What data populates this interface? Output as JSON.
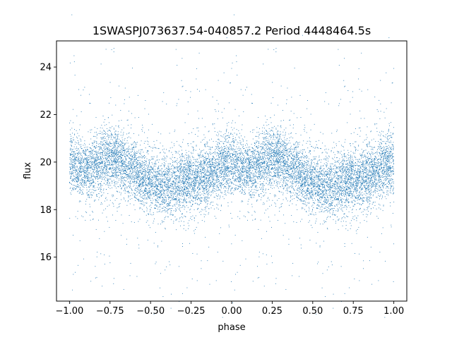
{
  "chart_data": {
    "type": "scatter",
    "title": "1SWASPJ073637.54-040857.2 Period 4448464.5s",
    "xlabel": "phase",
    "ylabel": "flux",
    "xlim": [
      -1.08,
      1.08
    ],
    "ylim": [
      14.15,
      25.1
    ],
    "x_ticks": [
      -1.0,
      -0.75,
      -0.5,
      -0.25,
      0.0,
      0.25,
      0.5,
      0.75,
      1.0
    ],
    "x_tick_labels": [
      "−1.00",
      "−0.75",
      "−0.50",
      "−0.25",
      "0.00",
      "0.25",
      "0.50",
      "0.75",
      "1.00"
    ],
    "y_ticks": [
      16,
      18,
      20,
      22,
      24
    ],
    "y_tick_labels": [
      "16",
      "18",
      "20",
      "22",
      "24"
    ],
    "grid": false,
    "legend": "none",
    "marker_color": "#1f77b4",
    "series": [
      {
        "x_range": [
          -1.0,
          1.0
        ],
        "phase_folded_mirror": true,
        "approx_point_count": 12000,
        "profile_phase": [
          0.0,
          0.05,
          0.1,
          0.15,
          0.2,
          0.25,
          0.3,
          0.35,
          0.4,
          0.45,
          0.5,
          0.55,
          0.6,
          0.65,
          0.7,
          0.75,
          0.8,
          0.85,
          0.9,
          0.95,
          1.0
        ],
        "profile_median_flux": [
          19.9,
          19.8,
          19.7,
          19.8,
          20.0,
          20.2,
          20.1,
          19.9,
          19.6,
          19.3,
          19.1,
          19.0,
          19.0,
          19.1,
          19.2,
          19.2,
          19.3,
          19.4,
          19.6,
          19.9,
          19.9
        ],
        "typical_spread": 1.2,
        "outlier_range": [
          14.6,
          24.9
        ]
      }
    ]
  }
}
